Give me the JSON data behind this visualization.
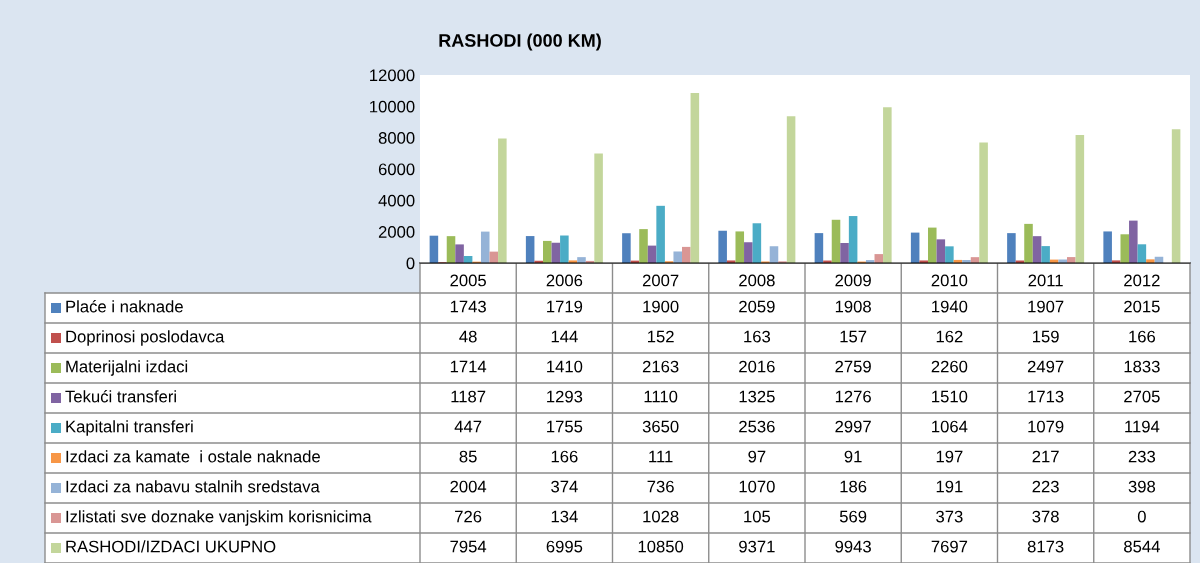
{
  "chart_data": {
    "type": "bar",
    "title": "RASHODI (000 KM)",
    "categories": [
      "2005",
      "2006",
      "2007",
      "2008",
      "2009",
      "2010",
      "2011",
      "2012"
    ],
    "ylim": [
      0,
      12000
    ],
    "yticks": [
      0,
      2000,
      4000,
      6000,
      8000,
      10000,
      12000
    ],
    "grid": false,
    "legend": "bottom",
    "data_labels": true,
    "series": [
      {
        "name": "Plaće i naknade",
        "color": "#4f81bd",
        "values": [
          1743,
          1719,
          1900,
          2059,
          1908,
          1940,
          1907,
          2015
        ]
      },
      {
        "name": "Doprinosi poslodavca",
        "color": "#c0504d",
        "values": [
          48,
          144,
          152,
          163,
          157,
          162,
          159,
          166
        ]
      },
      {
        "name": "Materijalni izdaci",
        "color": "#9bbb59",
        "values": [
          1714,
          1410,
          2163,
          2016,
          2759,
          2260,
          2497,
          1833
        ]
      },
      {
        "name": "Tekući transferi",
        "color": "#8064a2",
        "values": [
          1187,
          1293,
          1110,
          1325,
          1276,
          1510,
          1713,
          2705
        ]
      },
      {
        "name": "Kapitalni transferi",
        "color": "#4bacc6",
        "values": [
          447,
          1755,
          3650,
          2536,
          2997,
          1064,
          1079,
          1194
        ]
      },
      {
        "name": "Izdaci za kamate  i ostale naknade",
        "color": "#f79646",
        "values": [
          85,
          166,
          111,
          97,
          91,
          197,
          217,
          233
        ]
      },
      {
        "name": "Izdaci za nabavu stalnih sredstava",
        "color": "#95b3d7",
        "values": [
          2004,
          374,
          736,
          1070,
          186,
          191,
          223,
          398
        ]
      },
      {
        "name": "Izlistati sve doznake vanjskim korisnicima",
        "color": "#d99694",
        "values": [
          726,
          134,
          1028,
          105,
          569,
          373,
          378,
          0
        ]
      },
      {
        "name": "RASHODI/IZDACI UKUPNO",
        "color": "#c3d69b",
        "values": [
          7954,
          6995,
          10850,
          9371,
          9943,
          7697,
          8173,
          8544
        ]
      }
    ]
  }
}
